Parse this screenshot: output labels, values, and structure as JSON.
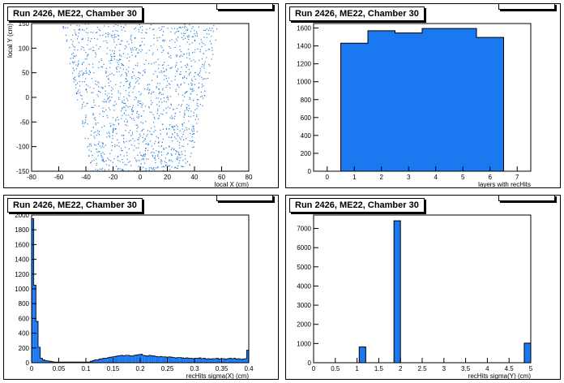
{
  "pads": [
    {
      "title": "Run 2426, ME22, Chamber 30",
      "stats_label": "",
      "stats_value": ""
    },
    {
      "title": "Run 2426, ME22, Chamber 30",
      "stats_label": "",
      "stats_value": ""
    },
    {
      "title": "Run 2426, ME22, Chamber 30",
      "stats_label": "",
      "stats_value": ""
    },
    {
      "title": "Run 2426, ME22, Chamber 30",
      "stats_label": "",
      "stats_value": ""
    }
  ],
  "colors": {
    "fill": "#1a78f0",
    "point": "#2a7fd8",
    "line": "#000000"
  },
  "chart_data": [
    {
      "type": "scatter",
      "title": "Run 2426, ME22, Chamber 30",
      "xlabel": "local X (cm)",
      "ylabel": "local Y (cm)",
      "xlim": [
        -80,
        80
      ],
      "ylim": [
        -150,
        150
      ],
      "xticks": [
        -80,
        -60,
        -40,
        -20,
        0,
        20,
        40,
        60,
        80
      ],
      "yticks": [
        -150,
        -100,
        -50,
        0,
        50,
        100,
        150
      ],
      "region": {
        "description_units": "cm",
        "top_y": 150,
        "top_half_width": 58,
        "bottom_y": -150,
        "bottom_half_width": 36
      },
      "point_count": 1400
    },
    {
      "type": "bar",
      "title": "Run 2426, ME22, Chamber 30",
      "xlabel": "layers with recHits",
      "ylabel": "",
      "xlim": [
        -0.5,
        7.5
      ],
      "ylim": [
        0,
        1650
      ],
      "xticks": [
        0,
        1,
        2,
        3,
        4,
        5,
        6,
        7
      ],
      "yticks": [
        0,
        200,
        400,
        600,
        800,
        1000,
        1200,
        1400,
        1600
      ],
      "categories": [
        1,
        2,
        3,
        4,
        5,
        6
      ],
      "values": [
        1430,
        1570,
        1545,
        1595,
        1595,
        1495
      ]
    },
    {
      "type": "bar",
      "title": "Run 2426, ME22, Chamber 30",
      "xlabel": "recHits sigma(X) (cm)",
      "ylabel": "",
      "xlim": [
        0,
        0.4
      ],
      "ylim": [
        0,
        2000
      ],
      "xticks": [
        "0",
        "0.05",
        "0.1",
        "0.15",
        "0.2",
        "0.25",
        "0.3",
        "0.35",
        "0.4"
      ],
      "yticks": [
        0,
        200,
        400,
        600,
        800,
        1000,
        1200,
        1400,
        1600,
        1800,
        2000
      ],
      "bin_width": 0.004,
      "values": [
        1950,
        1050,
        560,
        210,
        60,
        40,
        30,
        25,
        20,
        15,
        10,
        10,
        10,
        10,
        10,
        10,
        10,
        10,
        10,
        10,
        10,
        10,
        10,
        10,
        10,
        10,
        10,
        20,
        30,
        40,
        40,
        50,
        55,
        60,
        60,
        70,
        75,
        80,
        85,
        90,
        95,
        100,
        95,
        100,
        100,
        95,
        90,
        100,
        105,
        110,
        115,
        100,
        95,
        90,
        100,
        95,
        90,
        85,
        80,
        85,
        80,
        80,
        75,
        80,
        75,
        70,
        65,
        70,
        70,
        65,
        60,
        65,
        60,
        60,
        55,
        60,
        60,
        65,
        55,
        60,
        50,
        55,
        50,
        55,
        55,
        60,
        50,
        55,
        55,
        50,
        55,
        60,
        55,
        60,
        50,
        55,
        45,
        50,
        55,
        170
      ]
    },
    {
      "type": "bar",
      "title": "Run 2426, ME22, Chamber 30",
      "xlabel": "recHits sigma(Y) (cm)",
      "ylabel": "",
      "xlim": [
        0,
        5
      ],
      "ylim": [
        0,
        7700
      ],
      "xticks": [
        "0",
        "0.5",
        "1",
        "1.5",
        "2",
        "2.5",
        "3",
        "3.5",
        "4",
        "4.5",
        "5"
      ],
      "yticks": [
        0,
        1000,
        2000,
        3000,
        4000,
        5000,
        6000,
        7000
      ],
      "bars": [
        {
          "x0": 1.05,
          "x1": 1.2,
          "value": 820
        },
        {
          "x0": 1.85,
          "x1": 2.0,
          "value": 7400
        },
        {
          "x0": 4.85,
          "x1": 5.0,
          "value": 1020
        }
      ]
    }
  ]
}
